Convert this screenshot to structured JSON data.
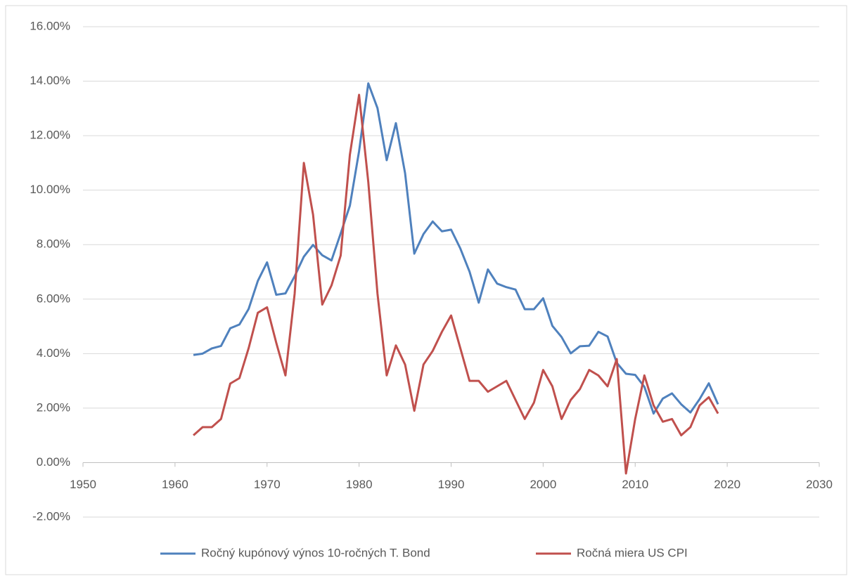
{
  "chart_data": {
    "type": "line",
    "x": [
      1962,
      1963,
      1964,
      1965,
      1966,
      1967,
      1968,
      1969,
      1970,
      1971,
      1972,
      1973,
      1974,
      1975,
      1976,
      1977,
      1978,
      1979,
      1980,
      1981,
      1982,
      1983,
      1984,
      1985,
      1986,
      1987,
      1988,
      1989,
      1990,
      1991,
      1992,
      1993,
      1994,
      1995,
      1996,
      1997,
      1998,
      1999,
      2000,
      2001,
      2002,
      2003,
      2004,
      2005,
      2006,
      2007,
      2008,
      2009,
      2010,
      2011,
      2012,
      2013,
      2014,
      2015,
      2016,
      2017,
      2018,
      2019
    ],
    "series": [
      {
        "name": "Ročný kupónový výnos 10-ročných T. Bond",
        "color": "#4f81bd",
        "values": [
          3.95,
          4.0,
          4.19,
          4.28,
          4.93,
          5.07,
          5.64,
          6.67,
          7.35,
          6.16,
          6.21,
          6.84,
          7.56,
          7.99,
          7.61,
          7.42,
          8.41,
          9.43,
          11.43,
          13.92,
          13.01,
          11.1,
          12.46,
          10.62,
          7.67,
          8.39,
          8.85,
          8.49,
          8.55,
          7.86,
          7.01,
          5.87,
          7.09,
          6.57,
          6.44,
          6.35,
          5.63,
          5.63,
          6.03,
          5.02,
          4.61,
          4.01,
          4.27,
          4.29,
          4.8,
          4.63,
          3.66,
          3.26,
          3.22,
          2.78,
          1.8,
          2.35,
          2.54,
          2.14,
          1.84,
          2.33,
          2.91,
          2.14
        ]
      },
      {
        "name": "Ročná miera US CPI",
        "color": "#c0504d",
        "values": [
          1.0,
          1.3,
          1.3,
          1.6,
          2.9,
          3.1,
          4.2,
          5.5,
          5.7,
          4.4,
          3.2,
          6.2,
          11.0,
          9.1,
          5.8,
          6.5,
          7.6,
          11.3,
          13.5,
          10.3,
          6.2,
          3.2,
          4.3,
          3.6,
          1.9,
          3.6,
          4.1,
          4.8,
          5.4,
          4.2,
          3.0,
          3.0,
          2.6,
          2.8,
          3.0,
          2.3,
          1.6,
          2.2,
          3.4,
          2.8,
          1.6,
          2.3,
          2.7,
          3.4,
          3.2,
          2.8,
          3.8,
          -0.4,
          1.6,
          3.2,
          2.1,
          1.5,
          1.6,
          1.0,
          1.3,
          2.1,
          2.4,
          1.8
        ]
      }
    ],
    "xlim": [
      1950,
      2030
    ],
    "xticks": [
      1950,
      1960,
      1970,
      1980,
      1990,
      2000,
      2010,
      2020,
      2030
    ],
    "ylim": [
      -2,
      16
    ],
    "yticks": [
      {
        "value": -2,
        "label": "-2.00%"
      },
      {
        "value": 0,
        "label": "0.00%"
      },
      {
        "value": 2,
        "label": "2.00%"
      },
      {
        "value": 4,
        "label": "4.00%"
      },
      {
        "value": 6,
        "label": "6.00%"
      },
      {
        "value": 8,
        "label": "8.00%"
      },
      {
        "value": 10,
        "label": "10.00%"
      },
      {
        "value": 12,
        "label": "12.00%"
      },
      {
        "value": 14,
        "label": "14.00%"
      },
      {
        "value": 16,
        "label": "16.00%"
      }
    ],
    "grid": true,
    "legend": "bottom"
  }
}
